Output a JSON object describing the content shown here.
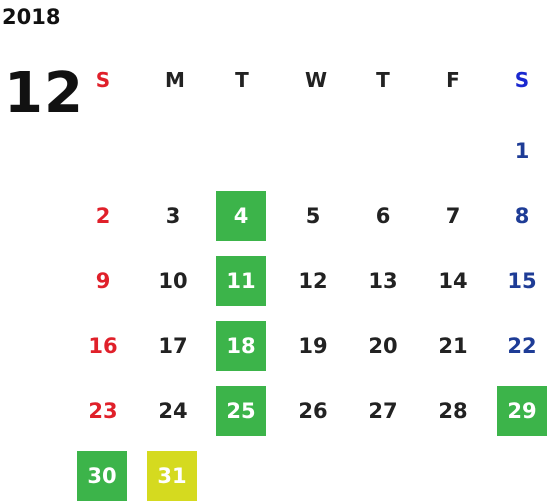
{
  "year": "2018",
  "month": "12",
  "weekdays": [
    "S",
    "M",
    "T",
    "W",
    "T",
    "F",
    "S"
  ],
  "days": {
    "d1": "1",
    "d2": "2",
    "d3": "3",
    "d4": "4",
    "d5": "5",
    "d6": "6",
    "d7": "7",
    "d8": "8",
    "d9": "9",
    "d10": "10",
    "d11": "11",
    "d12": "12",
    "d13": "13",
    "d14": "14",
    "d15": "15",
    "d16": "16",
    "d17": "17",
    "d18": "18",
    "d19": "19",
    "d20": "20",
    "d21": "21",
    "d22": "22",
    "d23": "23",
    "d24": "24",
    "d25": "25",
    "d26": "26",
    "d27": "27",
    "d28": "28",
    "d29": "29",
    "d30": "30",
    "d31": "31"
  },
  "colors": {
    "sunday": "#e0202a",
    "saturday": "#1e3c96",
    "saturday_header": "#1a28d0",
    "highlight_green": "#3cb44a",
    "highlight_yellow": "#d5da1f"
  }
}
